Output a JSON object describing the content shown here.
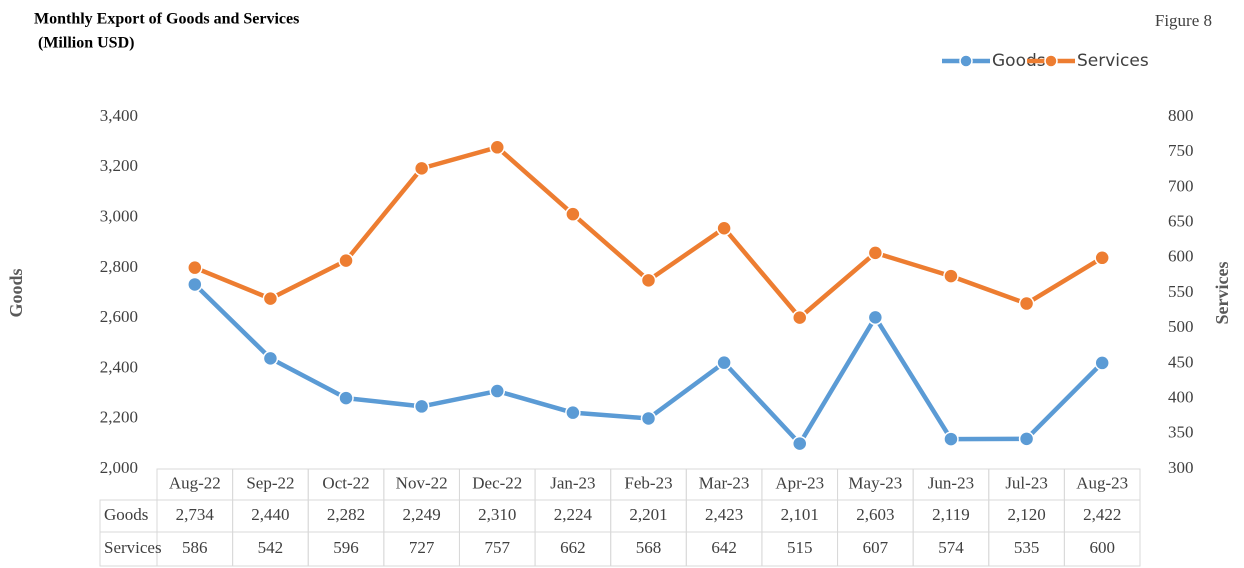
{
  "chart_data": {
    "type": "line",
    "title": "Monthly Export of Goods and Services",
    "subtitle": "(Million USD)",
    "figure_label": "Figure 8",
    "y_label": "Goods",
    "y2_label": "Services",
    "categories": [
      "Aug-22",
      "Sep-22",
      "Oct-22",
      "Nov-22",
      "Dec-22",
      "Jan-23",
      "Feb-23",
      "Mar-23",
      "Apr-23",
      "May-23",
      "Jun-23",
      "Jul-23",
      "Aug-23"
    ],
    "series": [
      {
        "name": "Goods",
        "color": "#5b9bd5",
        "axis": "y",
        "values": [
          2734,
          2440,
          2282,
          2249,
          2310,
          2224,
          2201,
          2423,
          2101,
          2603,
          2119,
          2120,
          2422
        ],
        "value_labels": [
          "2,734",
          "2,440",
          "2,282",
          "2,249",
          "2,310",
          "2,224",
          "2,201",
          "2,423",
          "2,101",
          "2,603",
          "2,119",
          "2,120",
          "2,422"
        ]
      },
      {
        "name": "Services",
        "color": "#ed7d31",
        "axis": "y2",
        "values": [
          586,
          542,
          596,
          727,
          757,
          662,
          568,
          642,
          515,
          607,
          574,
          535,
          600
        ]
      }
    ],
    "ylim": [
      2000,
      3400
    ],
    "yticks": [
      {
        "value": 2000,
        "label": "2,000"
      },
      {
        "value": 2200,
        "label": "2,200"
      },
      {
        "value": 2400,
        "label": "2,400"
      },
      {
        "value": 2600,
        "label": "2,600"
      },
      {
        "value": 2800,
        "label": "2,800"
      },
      {
        "value": 3000,
        "label": "3,000"
      },
      {
        "value": 3200,
        "label": "3,200"
      },
      {
        "value": 3400,
        "label": "3,400"
      }
    ],
    "y2lim": [
      300,
      800
    ],
    "y2ticks": [
      300,
      350,
      400,
      450,
      500,
      550,
      600,
      650,
      700,
      750,
      800
    ],
    "grid": false,
    "legend": "top-right"
  }
}
